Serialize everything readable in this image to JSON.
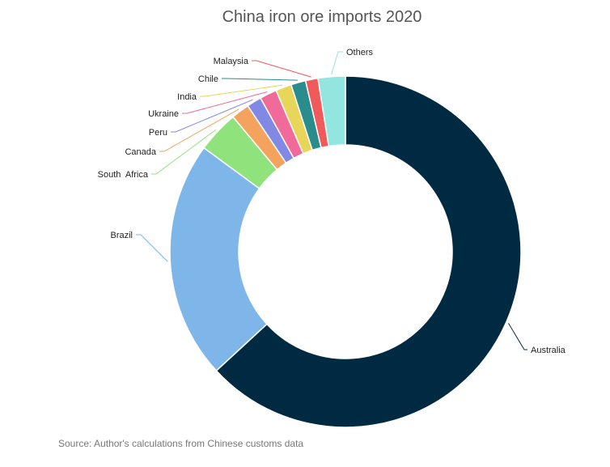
{
  "chart_data": {
    "type": "pie",
    "style": "donut",
    "title": "China iron ore imports 2020",
    "source": "Source: Author's calculations from Chinese customs data",
    "slices": [
      {
        "label": "Australia",
        "value": 60.5,
        "color": "#002a42"
      },
      {
        "label": "Brazil",
        "value": 21.0,
        "color": "#7eb6ea"
      },
      {
        "label": "South  Africa",
        "value": 3.7,
        "color": "#90e27d"
      },
      {
        "label": "Canada",
        "value": 1.6,
        "color": "#f3a35e"
      },
      {
        "label": "Peru",
        "value": 1.3,
        "color": "#8289e4"
      },
      {
        "label": "Ukraine",
        "value": 1.5,
        "color": "#f06a9a"
      },
      {
        "label": "India",
        "value": 1.4,
        "color": "#e7d65a"
      },
      {
        "label": "Chile",
        "value": 1.3,
        "color": "#2a8d8b"
      },
      {
        "label": "Malaysia",
        "value": 1.1,
        "color": "#f05a5a"
      },
      {
        "label": "Others",
        "value": 2.4,
        "color": "#93e6df"
      }
    ]
  }
}
